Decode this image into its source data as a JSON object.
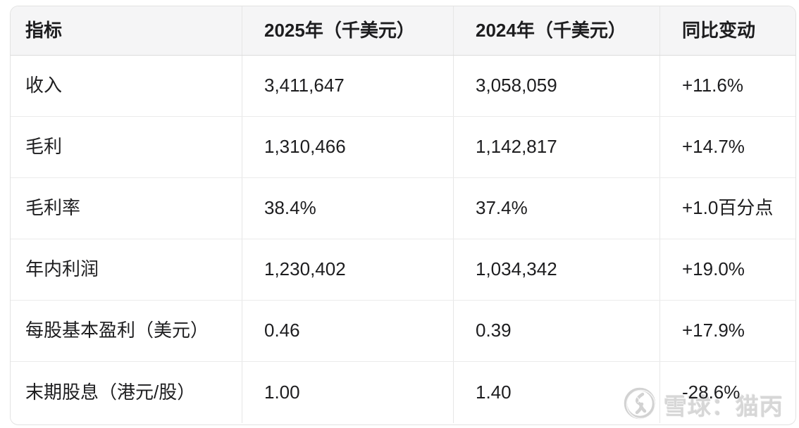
{
  "chart_data": {
    "type": "table",
    "title": "",
    "columns": [
      "指标",
      "2025年（千美元）",
      "2024年（千美元）",
      "同比变动"
    ],
    "rows": [
      [
        "收入",
        "3,411,647",
        "3,058,059",
        "+11.6%"
      ],
      [
        "毛利",
        "1,310,466",
        "1,142,817",
        "+14.7%"
      ],
      [
        "毛利率",
        "38.4%",
        "37.4%",
        "+1.0百分点"
      ],
      [
        "年内利润",
        "1,230,402",
        "1,034,342",
        "+19.0%"
      ],
      [
        "每股基本盈利（美元）",
        "0.46",
        "0.39",
        "+17.9%"
      ],
      [
        "末期股息（港元/股）",
        "1.00",
        "1.40",
        "-28.6%"
      ]
    ],
    "layout": {
      "header_background": "#f5f5f6",
      "row_background": "#ffffff",
      "grid_on": true,
      "rounded_corners": true
    }
  },
  "watermark": {
    "text": "雪球：猫丙",
    "logo": "xueqiu-logo-icon",
    "color": "#d7d7d7"
  },
  "colors": {
    "text": "#1d1d1f",
    "header_background": "#f5f5f6",
    "outer_border": "#e2e2e2",
    "header_divider": "#dcdcdc",
    "row_divider": "#ebebeb",
    "column_divider": "#e6e6e6",
    "watermark_gray": "#d7d7d7"
  }
}
